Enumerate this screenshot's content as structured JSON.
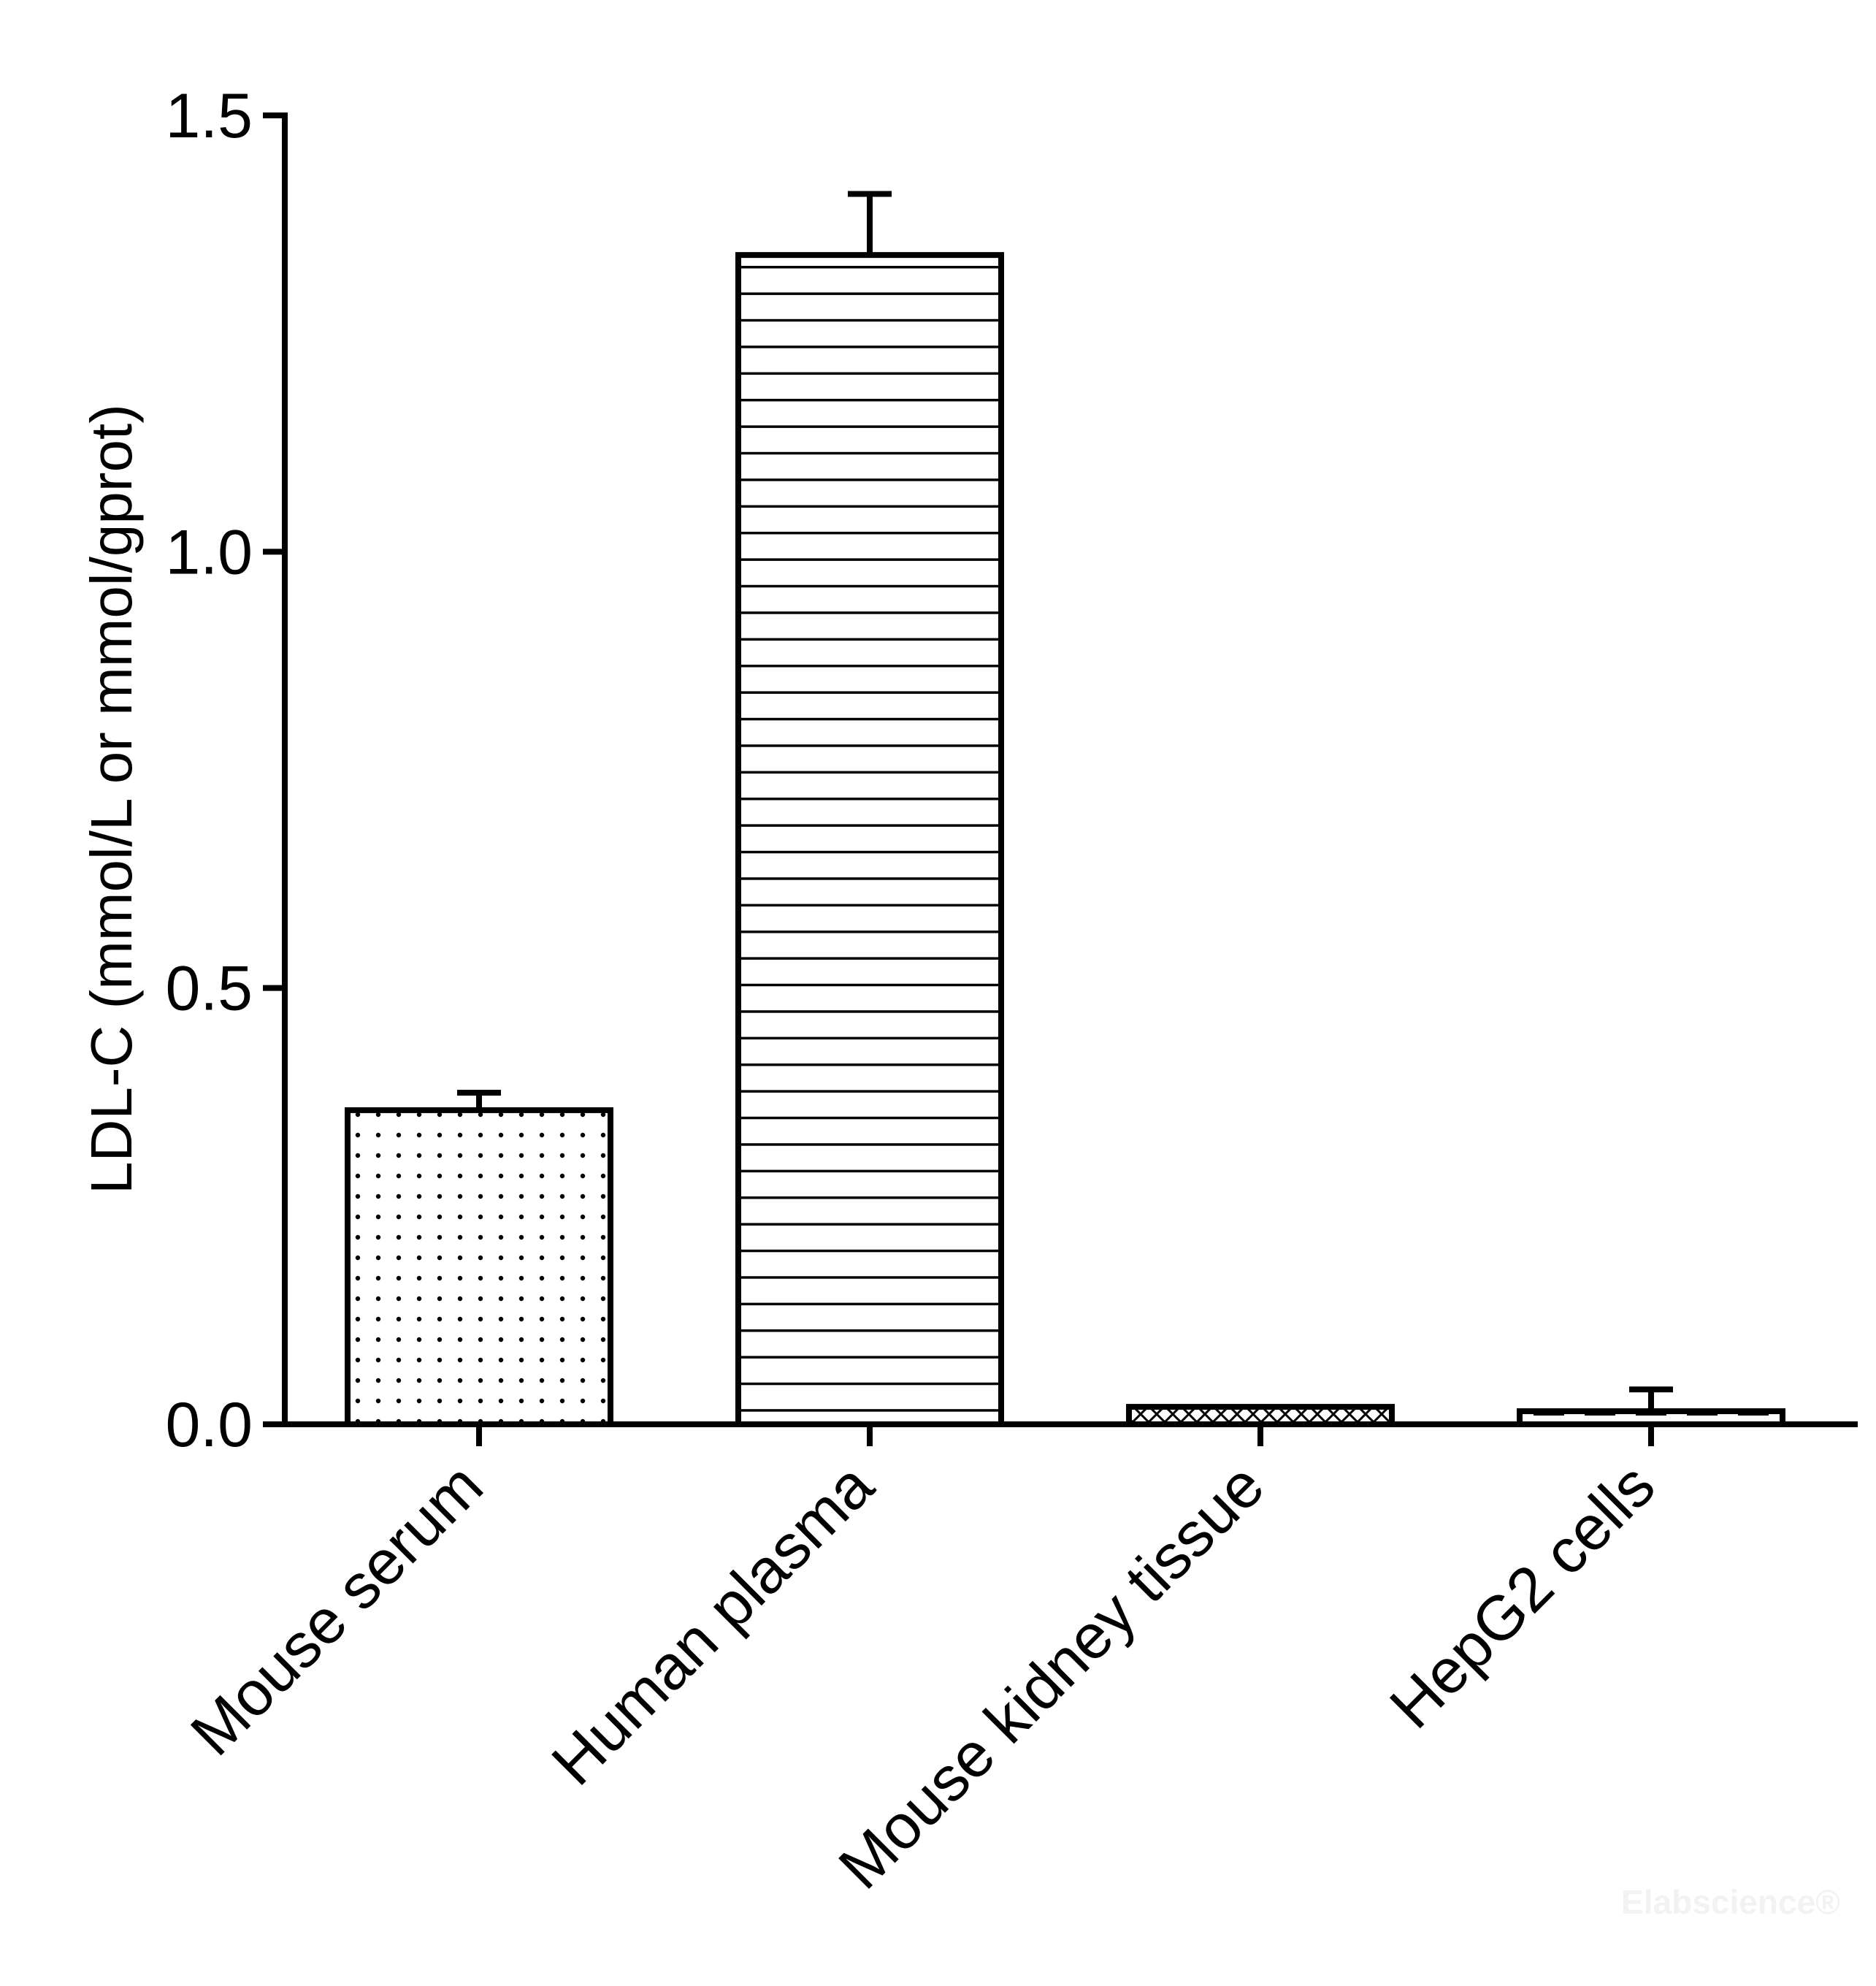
{
  "chart_data": {
    "type": "bar",
    "categories": [
      "Mouse serum",
      "Human plasma",
      "Mouse kidney tissue",
      "HepG2 cells"
    ],
    "values": [
      0.36,
      1.34,
      0.02,
      0.015
    ],
    "errors": [
      0.02,
      0.07,
      0.0,
      0.025
    ],
    "patterns": [
      "dots",
      "horizontal-lines",
      "crosshatch",
      "dashes"
    ],
    "title": "",
    "xlabel": "",
    "ylabel": "LDL-C (mmol/L or mmol/gprot)",
    "ylim": [
      0,
      1.5
    ],
    "yticks": [
      0.0,
      0.5,
      1.0,
      1.5
    ],
    "ytick_labels": [
      "0.0",
      "0.5",
      "1.0",
      "1.5"
    ],
    "grid": false,
    "legend": "none",
    "bar_fill": "#ffffff",
    "bar_stroke": "#000000"
  },
  "watermark": "Elabscience®"
}
